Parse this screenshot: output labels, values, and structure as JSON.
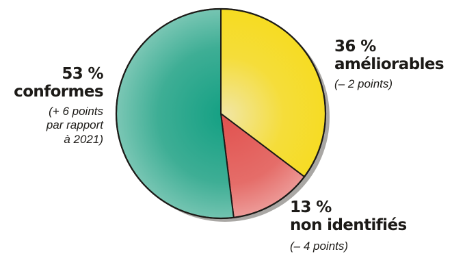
{
  "chart_data": {
    "type": "pie",
    "slices": [
      {
        "key": "ameliorables",
        "value": 36,
        "percent_label": "36 %",
        "category": "améliorables",
        "note": [
          "(– 2 points)"
        ],
        "color": "#f6dc1b",
        "shade": "#f1e6a3"
      },
      {
        "key": "nonid",
        "value": 13,
        "percent_label": "13 %",
        "category": "non identifiés",
        "note": [
          "(– 4 points)"
        ],
        "color": "#e1524f",
        "shade": "#f0aeac"
      },
      {
        "key": "conformes",
        "value": 53,
        "percent_label": "53 %",
        "category": "conformes",
        "note": [
          "(+ 6 points",
          "par rapport",
          "à 2021)"
        ],
        "color": "#13a083",
        "shade": "#8fcfbf"
      }
    ],
    "start_angle_deg": 0,
    "direction": "clockwise",
    "outline_color": "#1c1a17",
    "shadow_color": "#a9a7a4"
  }
}
